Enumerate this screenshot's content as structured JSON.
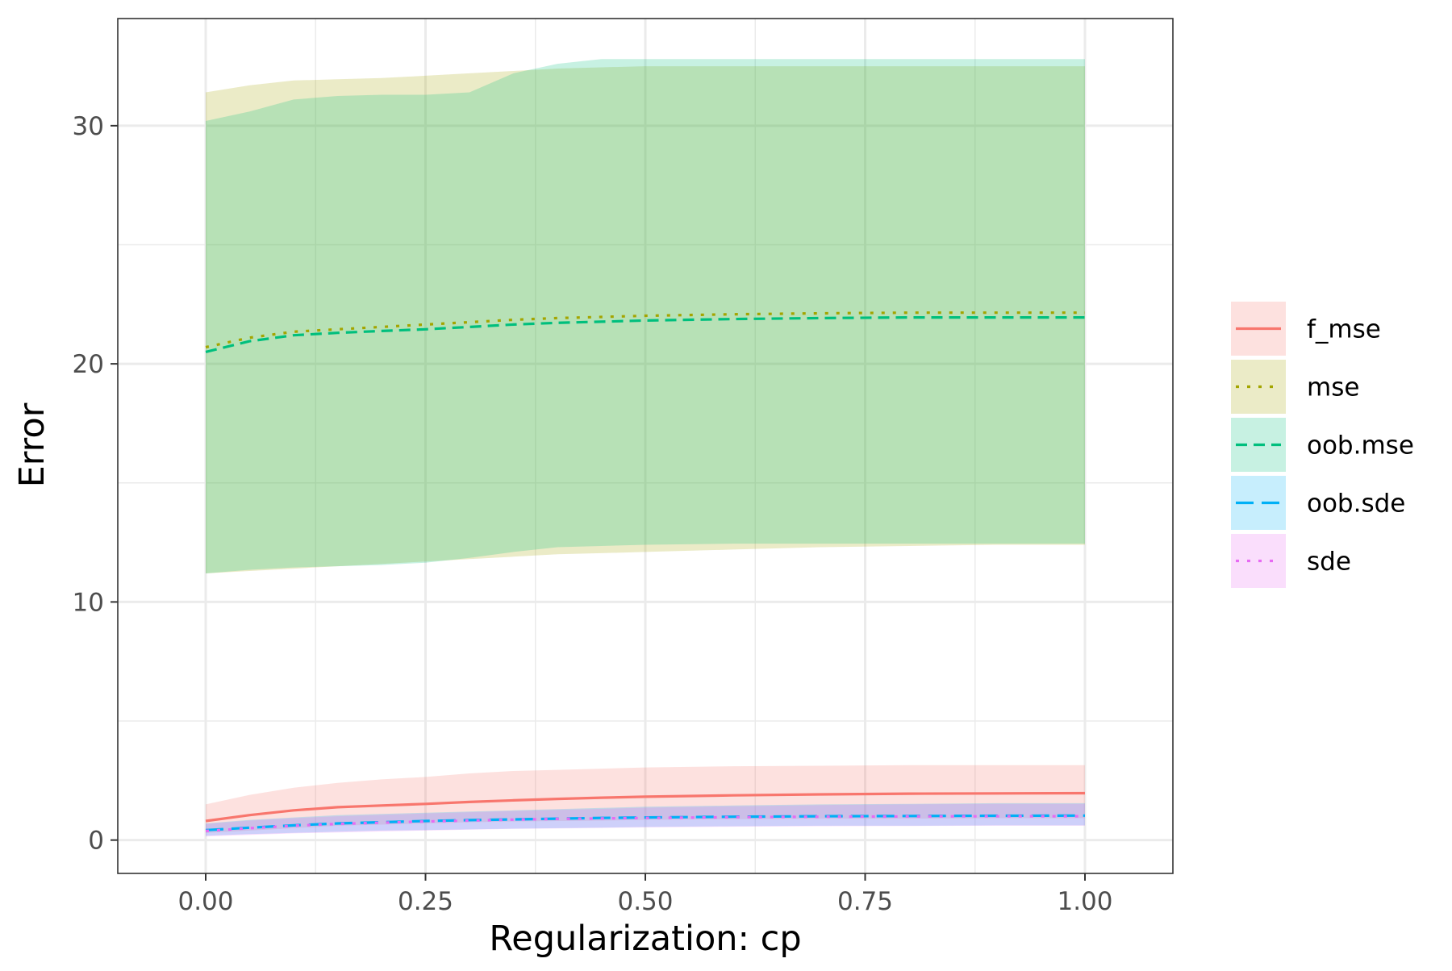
{
  "chart_data": {
    "type": "line",
    "title": "",
    "xlabel": "Regularization: cp",
    "ylabel": "Error",
    "xlim": [
      -0.1,
      1.1
    ],
    "ylim": [
      -1.4,
      34.5
    ],
    "x_ticks": [
      0,
      0.25,
      0.5,
      0.75,
      1
    ],
    "x_tick_labels": [
      "0.00",
      "0.25",
      "0.50",
      "0.75",
      "1.00"
    ],
    "y_ticks": [
      0,
      10,
      20,
      30
    ],
    "y_tick_labels": [
      "0",
      "10",
      "20",
      "30"
    ],
    "x_minor_ticks": [
      0.125,
      0.375,
      0.625,
      0.875
    ],
    "y_minor_ticks": [
      5,
      15,
      25
    ],
    "grid": true,
    "legend_position": "right",
    "x": [
      0,
      0.05,
      0.1,
      0.15,
      0.2,
      0.25,
      0.3,
      0.35,
      0.4,
      0.45,
      0.5,
      0.6,
      0.7,
      0.8,
      0.9,
      1.0
    ],
    "series": [
      {
        "name": "f_mse",
        "color": "#F8766D",
        "linestyle": "solid",
        "fill_opacity": 0.22,
        "y": [
          0.8,
          1.05,
          1.25,
          1.38,
          1.45,
          1.52,
          1.6,
          1.67,
          1.73,
          1.78,
          1.82,
          1.88,
          1.92,
          1.95,
          1.96,
          1.97
        ],
        "lower": [
          0.3,
          0.4,
          0.5,
          0.6,
          0.65,
          0.7,
          0.75,
          0.78,
          0.8,
          0.82,
          0.85,
          0.88,
          0.9,
          0.9,
          0.92,
          0.92
        ],
        "upper": [
          1.5,
          1.9,
          2.2,
          2.4,
          2.55,
          2.65,
          2.8,
          2.9,
          2.95,
          3.0,
          3.05,
          3.1,
          3.12,
          3.15,
          3.15,
          3.15
        ]
      },
      {
        "name": "mse",
        "color": "#A3A500",
        "linestyle": "dotted",
        "fill_opacity": 0.22,
        "y": [
          20.7,
          21.1,
          21.35,
          21.45,
          21.55,
          21.65,
          21.75,
          21.85,
          21.92,
          21.97,
          22.02,
          22.08,
          22.12,
          22.15,
          22.15,
          22.15
        ],
        "lower": [
          11.2,
          11.3,
          11.4,
          11.5,
          11.6,
          11.7,
          11.8,
          11.9,
          12.0,
          12.05,
          12.1,
          12.2,
          12.3,
          12.35,
          12.4,
          12.4
        ],
        "upper": [
          31.4,
          31.7,
          31.9,
          31.95,
          32.0,
          32.1,
          32.2,
          32.3,
          32.4,
          32.45,
          32.5,
          32.5,
          32.5,
          32.5,
          32.5,
          32.5
        ]
      },
      {
        "name": "oob.mse",
        "color": "#00BF7D",
        "linestyle": "dashed",
        "fill_opacity": 0.22,
        "y": [
          20.5,
          20.95,
          21.2,
          21.3,
          21.38,
          21.45,
          21.55,
          21.65,
          21.72,
          21.77,
          21.82,
          21.88,
          21.92,
          21.95,
          21.95,
          21.95
        ],
        "lower": [
          11.2,
          11.35,
          11.45,
          11.5,
          11.55,
          11.65,
          11.85,
          12.1,
          12.3,
          12.35,
          12.4,
          12.45,
          12.45,
          12.45,
          12.45,
          12.45
        ],
        "upper": [
          30.2,
          30.6,
          31.1,
          31.25,
          31.3,
          31.3,
          31.4,
          32.2,
          32.6,
          32.8,
          32.8,
          32.8,
          32.8,
          32.8,
          32.8,
          32.8
        ]
      },
      {
        "name": "oob.sde",
        "color": "#00B0F6",
        "linestyle": "longdash",
        "fill_opacity": 0.22,
        "y": [
          0.42,
          0.52,
          0.62,
          0.7,
          0.75,
          0.8,
          0.84,
          0.87,
          0.9,
          0.93,
          0.95,
          0.98,
          1.0,
          1.01,
          1.02,
          1.03
        ],
        "lower": [
          0.18,
          0.25,
          0.3,
          0.35,
          0.4,
          0.42,
          0.45,
          0.48,
          0.5,
          0.52,
          0.55,
          0.58,
          0.6,
          0.6,
          0.62,
          0.62
        ],
        "upper": [
          0.7,
          0.85,
          0.95,
          1.05,
          1.1,
          1.15,
          1.2,
          1.25,
          1.3,
          1.35,
          1.4,
          1.45,
          1.5,
          1.52,
          1.55,
          1.55
        ]
      },
      {
        "name": "sde",
        "color": "#E76BF3",
        "linestyle": "dotted",
        "fill_opacity": 0.22,
        "y": [
          0.38,
          0.5,
          0.6,
          0.68,
          0.73,
          0.78,
          0.82,
          0.86,
          0.89,
          0.91,
          0.93,
          0.96,
          0.98,
          0.99,
          1.0,
          1.0
        ],
        "lower": [
          0.15,
          0.22,
          0.28,
          0.32,
          0.36,
          0.4,
          0.44,
          0.47,
          0.49,
          0.51,
          0.53,
          0.56,
          0.58,
          0.59,
          0.6,
          0.6
        ],
        "upper": [
          0.68,
          0.82,
          0.92,
          1.0,
          1.06,
          1.12,
          1.17,
          1.22,
          1.27,
          1.31,
          1.36,
          1.42,
          1.47,
          1.5,
          1.52,
          1.52
        ]
      }
    ]
  }
}
